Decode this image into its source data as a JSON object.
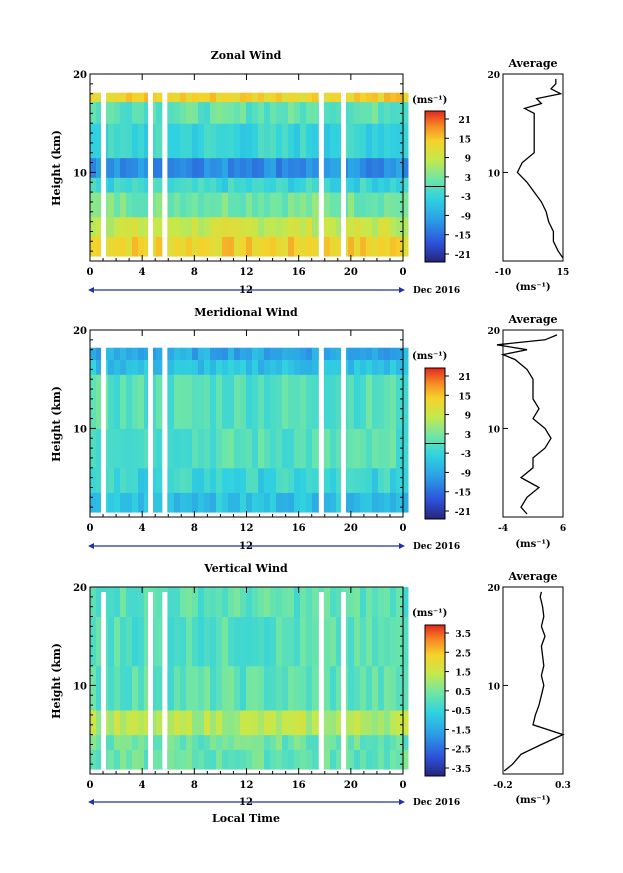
{
  "figure": {
    "xlabel": "Local Time",
    "date_label": "Dec 2016",
    "day_label": "12",
    "colorbar_unit": "(ms⁻¹)",
    "avg_unit": "(ms⁻¹)",
    "avg_title": "Average",
    "ylabel": "Height (km)"
  },
  "chart_data": [
    {
      "type": "heatmap",
      "title": "Zonal Wind",
      "ylabel": "Height (km)",
      "xlabel": "",
      "x_ticks": [
        "0",
        "4",
        "8",
        "12",
        "16",
        "20",
        "0"
      ],
      "xlim": [
        0,
        24
      ],
      "y_ticks": [
        "20",
        "10"
      ],
      "ylim": [
        1,
        20
      ],
      "colorbar": {
        "min": -24,
        "max": 24,
        "ticks": [
          "21",
          "15",
          "9",
          "3",
          "-3",
          "-9",
          "-15",
          "-21"
        ],
        "zero_line": true
      },
      "layers": [
        {
          "h0": 1.5,
          "h1": 3.5,
          "value": 14
        },
        {
          "h0": 3.5,
          "h1": 5.5,
          "value": 9
        },
        {
          "h0": 5.5,
          "h1": 8.0,
          "value": 3
        },
        {
          "h0": 8.0,
          "h1": 9.5,
          "value": -3
        },
        {
          "h0": 9.5,
          "h1": 11.5,
          "value": -12
        },
        {
          "h0": 11.5,
          "h1": 15.0,
          "value": -3
        },
        {
          "h0": 15.0,
          "h1": 17.2,
          "value": 1
        },
        {
          "h0": 17.2,
          "h1": 18.1,
          "value": 14
        }
      ],
      "gaps_hours": [
        1.0,
        4.6,
        5.7,
        17.7,
        19.4
      ],
      "average_profile": {
        "xlim": [
          -10,
          15
        ],
        "x_ticks": [
          "-10",
          "15"
        ],
        "y_ticks": [
          "20",
          "10"
        ],
        "heights": [
          1.3,
          2,
          3,
          4,
          5,
          6,
          7,
          8,
          9,
          10,
          11,
          12,
          13,
          14,
          15,
          16,
          16.5,
          17,
          17.5,
          18,
          18.5,
          19,
          19.5
        ],
        "values": [
          15,
          13,
          11,
          11,
          9,
          8,
          6,
          3,
          0,
          -4,
          -2,
          3,
          3,
          3,
          3,
          3,
          -1,
          6,
          4,
          14,
          10,
          12,
          12
        ]
      }
    },
    {
      "type": "heatmap",
      "title": "Meridional Wind",
      "ylabel": "Height (km)",
      "xlabel": "",
      "x_ticks": [
        "0",
        "4",
        "8",
        "12",
        "16",
        "20",
        "0"
      ],
      "xlim": [
        0,
        24
      ],
      "y_ticks": [
        "20",
        "10"
      ],
      "ylim": [
        1,
        20
      ],
      "colorbar": {
        "min": -24,
        "max": 24,
        "ticks": [
          "21",
          "15",
          "9",
          "3",
          "-3",
          "-9",
          "-15",
          "-21"
        ],
        "zero_line": true
      },
      "layers": [
        {
          "h0": 1.5,
          "h1": 3.5,
          "value": -6
        },
        {
          "h0": 3.5,
          "h1": 6.0,
          "value": -3
        },
        {
          "h0": 6.0,
          "h1": 10.0,
          "value": 0
        },
        {
          "h0": 10.0,
          "h1": 15.5,
          "value": 0
        },
        {
          "h0": 15.5,
          "h1": 17.0,
          "value": -6
        },
        {
          "h0": 17.0,
          "h1": 18.2,
          "value": -9
        }
      ],
      "gaps_hours": [
        1.0,
        4.6,
        5.7,
        17.7,
        19.4
      ],
      "average_profile": {
        "xlim": [
          -4,
          6
        ],
        "x_ticks": [
          "-4",
          "6"
        ],
        "y_ticks": [
          "20",
          "10"
        ],
        "heights": [
          1.3,
          2,
          3,
          4,
          5,
          6,
          7,
          8,
          9,
          10,
          11,
          12,
          13,
          14,
          15,
          16,
          17,
          17.5,
          18,
          18.5,
          19,
          19.5
        ],
        "values": [
          0,
          -1,
          0,
          2,
          -1,
          1,
          1,
          3,
          4,
          3,
          1,
          2,
          1,
          1,
          1,
          0,
          -2,
          -4,
          0,
          -5,
          3,
          5
        ]
      }
    },
    {
      "type": "heatmap",
      "title": "Vertical Wind",
      "ylabel": "Height (km)",
      "xlabel": "Local Time",
      "x_ticks": [
        "0",
        "4",
        "8",
        "12",
        "16",
        "20",
        "0"
      ],
      "xlim": [
        0,
        24
      ],
      "y_ticks": [
        "20",
        "10"
      ],
      "ylim": [
        1,
        20
      ],
      "colorbar": {
        "min": -4,
        "max": 4,
        "ticks": [
          "3.5",
          "2.5",
          "1.5",
          "0.5",
          "-0.5",
          "-1.5",
          "-2.5",
          "-3.5"
        ],
        "zero_line": false
      },
      "layers": [
        {
          "h0": 1.5,
          "h1": 3.5,
          "value": 0.2
        },
        {
          "h0": 3.5,
          "h1": 5.0,
          "value": 0.3
        },
        {
          "h0": 5.0,
          "h1": 7.5,
          "value": 1.2
        },
        {
          "h0": 7.5,
          "h1": 12.0,
          "value": 0.1
        },
        {
          "h0": 12.0,
          "h1": 17.0,
          "value": 0.0
        },
        {
          "h0": 17.0,
          "h1": 20.0,
          "value": 0.1
        }
      ],
      "gaps_hours": [
        1.0,
        4.6,
        5.7,
        17.7,
        19.4
      ],
      "average_profile": {
        "xlim": [
          -0.2,
          0.3
        ],
        "x_ticks": [
          "-0.2",
          "0.3"
        ],
        "y_ticks": [
          "20",
          "10"
        ],
        "heights": [
          1.3,
          2,
          3,
          4,
          5,
          6,
          7,
          8,
          9,
          10,
          11,
          12,
          13,
          14,
          15,
          16,
          17,
          18,
          19,
          19.5
        ],
        "values": [
          -0.19,
          -0.12,
          -0.05,
          0.12,
          0.3,
          0.05,
          0.07,
          0.1,
          0.12,
          0.14,
          0.12,
          0.14,
          0.13,
          0.12,
          0.15,
          0.12,
          0.14,
          0.13,
          0.11,
          0.12
        ]
      }
    }
  ]
}
